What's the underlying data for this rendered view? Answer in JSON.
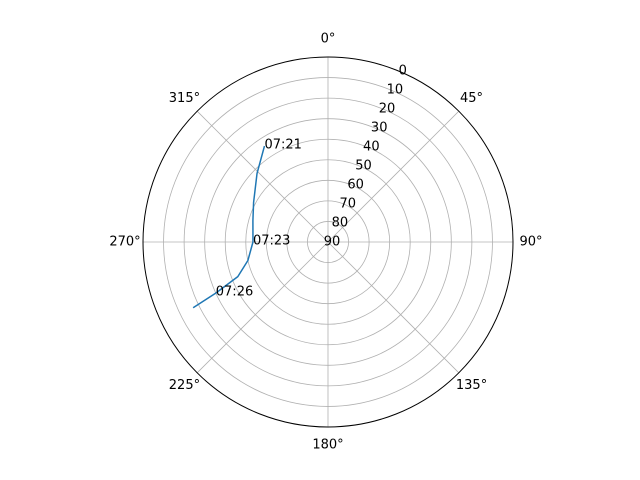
{
  "chart_data": {
    "type": "line",
    "projection": "polar",
    "title": "",
    "theta_direction": "clockwise",
    "theta_zero_location": "top",
    "angular_tick_labels": [
      "0°",
      "45°",
      "90°",
      "135°",
      "180°",
      "225°",
      "270°",
      "315°"
    ],
    "angular_ticks_deg": [
      0,
      45,
      90,
      135,
      180,
      225,
      270,
      315
    ],
    "radial_axis": {
      "description": "elevation",
      "inverted": true,
      "range": [
        90,
        0
      ],
      "ticks": [
        0,
        10,
        20,
        30,
        40,
        50,
        60,
        70,
        80,
        90
      ],
      "tick_labels": [
        "0",
        "10",
        "20",
        "30",
        "40",
        "50",
        "60",
        "70",
        "80",
        "90"
      ],
      "label_angle_deg": 22.5
    },
    "grid": true,
    "series": [
      {
        "color": "#1f77b4",
        "points": [
          {
            "azimuth": 326.5,
            "elevation": 34.0
          },
          {
            "azimuth": 314.0,
            "elevation": 42.0
          },
          {
            "azimuth": 298.0,
            "elevation": 49.0
          },
          {
            "azimuth": 286.0,
            "elevation": 52.0
          },
          {
            "azimuth": 270.0,
            "elevation": 53.5
          },
          {
            "azimuth": 257.0,
            "elevation": 50.0
          },
          {
            "azimuth": 249.0,
            "elevation": 43.0
          },
          {
            "azimuth": 245.5,
            "elevation": 30.0
          },
          {
            "azimuth": 244.0,
            "elevation": 17.0
          }
        ]
      }
    ],
    "annotations": [
      {
        "text": "07:21",
        "azimuth": 326.5,
        "elevation": 34.0
      },
      {
        "text": "07:23",
        "azimuth": 270.0,
        "elevation": 53.5
      },
      {
        "text": "07:26",
        "azimuth": 245.5,
        "elevation": 30.0
      }
    ]
  }
}
